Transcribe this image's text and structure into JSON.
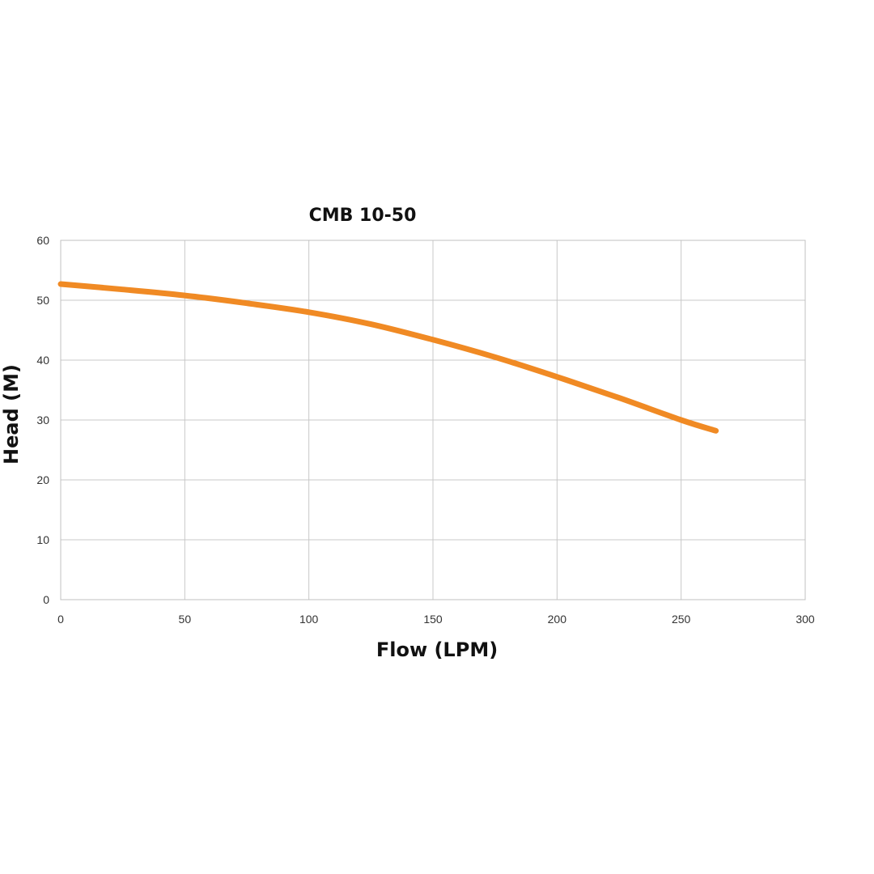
{
  "chart_data": {
    "type": "line",
    "title": "CMB 10-50",
    "xlabel": "Flow (LPM)",
    "ylabel": "Head (M)",
    "xlim": [
      0,
      300
    ],
    "ylim": [
      0,
      60
    ],
    "x_ticks": [
      "0",
      "50",
      "100",
      "150",
      "200",
      "250",
      "300"
    ],
    "y_ticks": [
      "0",
      "10",
      "20",
      "30",
      "40",
      "50",
      "60"
    ],
    "grid": true,
    "legend": "none",
    "series": [
      {
        "color": "#f08a24",
        "x": [
          0,
          25,
          50,
          75,
          100,
          125,
          150,
          175,
          200,
          225,
          250,
          264
        ],
        "y": [
          52.7,
          51.8,
          50.8,
          49.5,
          48.0,
          46.0,
          43.4,
          40.5,
          37.2,
          33.7,
          30.0,
          28.2
        ]
      }
    ]
  }
}
